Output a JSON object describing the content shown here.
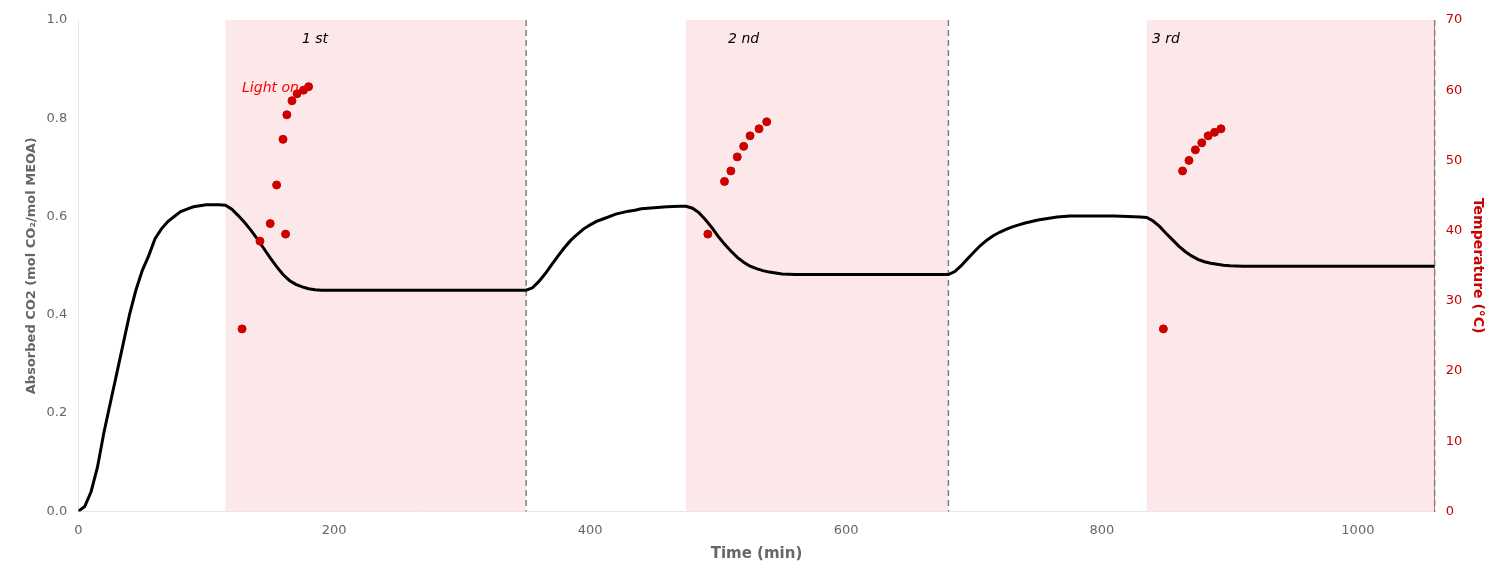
{
  "chart_data": {
    "type": "line",
    "xlabel": "Time (min)",
    "ylabel": "Absorbed CO2 (mol CO₂/mol MEOA)",
    "y2label": "Temperature (°C)",
    "xlim": [
      0,
      1060
    ],
    "ylim": [
      0.0,
      1.0
    ],
    "y2lim": [
      0,
      70
    ],
    "xticks": [
      0,
      200,
      400,
      600,
      800,
      1000
    ],
    "yticks": [
      {
        "value": 0.0,
        "label": "0.0"
      },
      0.2,
      0.4,
      0.6,
      0.8,
      {
        "value": 1.0,
        "label": "1.0"
      }
    ],
    "y2ticks": [
      0,
      10,
      20,
      30,
      40,
      50,
      60,
      70
    ],
    "grid": false,
    "shaded_regions": [
      [
        115,
        350
      ],
      [
        475,
        680
      ],
      [
        835,
        1060
      ]
    ],
    "shaded_color": "#fce8e8",
    "dashed_lines_x": [
      350,
      680,
      1060
    ],
    "annotations": [
      {
        "text": "1 st",
        "x": 185,
        "y": 0.975
      },
      {
        "text": "2 nd",
        "x": 520,
        "y": 0.975
      },
      {
        "text": "3 rd",
        "x": 850,
        "y": 0.975
      },
      {
        "text": "Light on",
        "x": 128,
        "y": 0.875,
        "color": "red"
      }
    ],
    "series": [
      {
        "type": "line",
        "color": "black",
        "axis": "y",
        "x": [
          0,
          5,
          10,
          15,
          20,
          25,
          30,
          35,
          40,
          45,
          50,
          55,
          60,
          65,
          70,
          75,
          80,
          85,
          90,
          95,
          100,
          105,
          110,
          115,
          120,
          125,
          130,
          135,
          140,
          145,
          150,
          155,
          160,
          165,
          170,
          175,
          180,
          185,
          190,
          200,
          220,
          240,
          260,
          280,
          300,
          320,
          340,
          350,
          355,
          360,
          365,
          370,
          375,
          380,
          385,
          390,
          395,
          400,
          405,
          410,
          415,
          420,
          425,
          430,
          435,
          440,
          450,
          460,
          470,
          475,
          480,
          485,
          490,
          495,
          500,
          505,
          510,
          515,
          520,
          525,
          530,
          535,
          540,
          545,
          550,
          560,
          580,
          600,
          620,
          640,
          660,
          680,
          685,
          690,
          695,
          700,
          705,
          710,
          715,
          720,
          725,
          730,
          735,
          740,
          745,
          750,
          755,
          760,
          765,
          770,
          775,
          780,
          790,
          800,
          810,
          820,
          830,
          835,
          840,
          845,
          850,
          855,
          860,
          865,
          870,
          875,
          880,
          885,
          890,
          895,
          900,
          910,
          920,
          940,
          960,
          980,
          1000,
          1020,
          1040,
          1060
        ],
        "values": [
          0.0,
          0.01,
          0.04,
          0.09,
          0.16,
          0.22,
          0.28,
          0.34,
          0.4,
          0.45,
          0.49,
          0.52,
          0.555,
          0.575,
          0.59,
          0.6,
          0.61,
          0.615,
          0.62,
          0.622,
          0.624,
          0.624,
          0.624,
          0.623,
          0.615,
          0.602,
          0.588,
          0.572,
          0.554,
          0.535,
          0.516,
          0.498,
          0.482,
          0.47,
          0.462,
          0.457,
          0.453,
          0.451,
          0.45,
          0.45,
          0.45,
          0.45,
          0.45,
          0.45,
          0.45,
          0.45,
          0.45,
          0.45,
          0.455,
          0.468,
          0.484,
          0.502,
          0.52,
          0.537,
          0.552,
          0.564,
          0.575,
          0.583,
          0.59,
          0.595,
          0.6,
          0.605,
          0.608,
          0.611,
          0.613,
          0.616,
          0.618,
          0.62,
          0.621,
          0.621,
          0.617,
          0.608,
          0.594,
          0.578,
          0.56,
          0.544,
          0.53,
          0.517,
          0.507,
          0.499,
          0.494,
          0.49,
          0.487,
          0.485,
          0.483,
          0.482,
          0.482,
          0.482,
          0.482,
          0.482,
          0.482,
          0.482,
          0.488,
          0.5,
          0.514,
          0.528,
          0.541,
          0.552,
          0.561,
          0.568,
          0.574,
          0.579,
          0.583,
          0.587,
          0.59,
          0.593,
          0.595,
          0.597,
          0.599,
          0.6,
          0.601,
          0.601,
          0.601,
          0.601,
          0.601,
          0.6,
          0.599,
          0.598,
          0.591,
          0.58,
          0.566,
          0.553,
          0.54,
          0.529,
          0.52,
          0.513,
          0.508,
          0.505,
          0.503,
          0.501,
          0.5,
          0.499,
          0.499,
          0.499,
          0.499,
          0.499,
          0.499,
          0.499,
          0.499,
          0.499
        ]
      },
      {
        "type": "scatter",
        "color": "#cc0000",
        "axis": "y2",
        "x": [
          128,
          142,
          150,
          155,
          160,
          163,
          167,
          171,
          176,
          180,
          162,
          492,
          505,
          510,
          515,
          520,
          525,
          532,
          538,
          848,
          863,
          868,
          873,
          878,
          883,
          888,
          893
        ],
        "values": [
          26.0,
          38.5,
          41.0,
          46.5,
          53.0,
          56.5,
          58.5,
          59.5,
          60.0,
          60.5,
          39.5,
          39.5,
          47.0,
          48.5,
          50.5,
          52.0,
          53.5,
          54.5,
          55.5,
          26.0,
          48.5,
          50.0,
          51.5,
          52.5,
          53.5,
          54.0,
          54.5
        ]
      }
    ]
  }
}
